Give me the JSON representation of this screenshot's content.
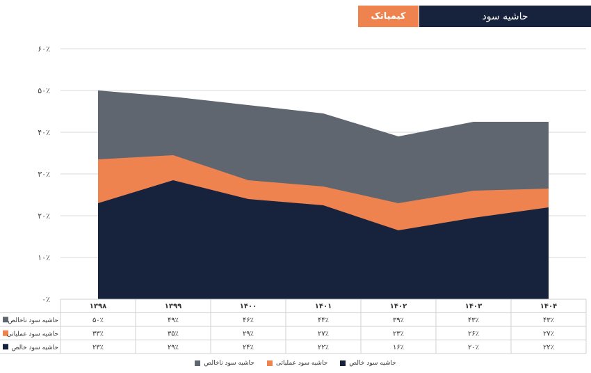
{
  "header": {
    "company": "کیمیاتک",
    "title": "حاشیه سود",
    "accent": "#ef8350",
    "navy": "#17223d"
  },
  "chart_data": {
    "type": "area",
    "stacked_visual": "overlapping",
    "categories": [
      "۱۳۹۸",
      "۱۳۹۹",
      "۱۴۰۰",
      "۱۴۰۱",
      "۱۴۰۲",
      "۱۴۰۳",
      "۱۴۰۴"
    ],
    "ylim": [
      0,
      60
    ],
    "yticks": [
      0,
      10,
      20,
      30,
      40,
      50,
      60
    ],
    "ytick_labels": [
      "۰٪",
      "۱۰٪",
      "۲۰٪",
      "۳۰٪",
      "۴۰٪",
      "۵۰٪",
      "۶۰٪"
    ],
    "series": [
      {
        "name": "حاشیه سود ناخالص",
        "color": "#5f6670",
        "values": [
          50,
          48.5,
          46.5,
          44.5,
          39,
          42.5,
          42.5
        ],
        "labels": [
          "۵۰٪",
          "۴۹٪",
          "۴۶٪",
          "۴۴٪",
          "۳۹٪",
          "۴۳٪",
          "۴۳٪"
        ]
      },
      {
        "name": "حاشیه سود عملیاتی",
        "color": "#ef8350",
        "values": [
          33.5,
          34.5,
          28.5,
          27,
          23,
          26,
          26.5
        ],
        "labels": [
          "۳۳٪",
          "۳۵٪",
          "۲۹٪",
          "۲۷٪",
          "۲۳٪",
          "۲۶٪",
          "۲۷٪"
        ]
      },
      {
        "name": "حاشیه سود خالص",
        "color": "#17223d",
        "values": [
          23,
          28.5,
          24,
          22.5,
          16.5,
          19.5,
          22
        ],
        "labels": [
          "۲۳٪",
          "۲۹٪",
          "۲۴٪",
          "۲۲٪",
          "۱۶٪",
          "۲۰٪",
          "۲۲٪"
        ]
      }
    ]
  }
}
